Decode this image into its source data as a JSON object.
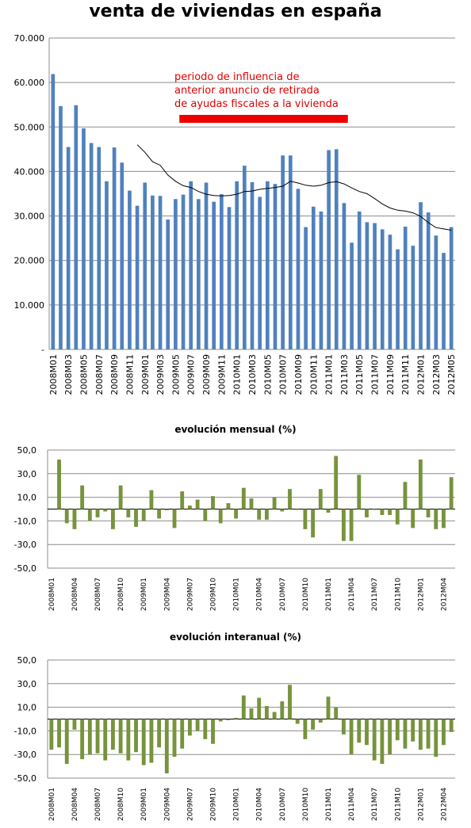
{
  "title": "venta de viviendas en españa",
  "chart_data": [
    {
      "type": "bar",
      "title": "venta de viviendas en españa",
      "bar_color": "#4f81bd",
      "line_color": "#000000",
      "yticks": [
        "-",
        "10.000",
        "20.000",
        "30.000",
        "40.000",
        "50.000",
        "60.000",
        "70.000"
      ],
      "ylim": [
        0,
        70000
      ],
      "grid": true,
      "categories": [
        "2008M01",
        "2008M02",
        "2008M03",
        "2008M04",
        "2008M05",
        "2008M06",
        "2008M07",
        "2008M08",
        "2008M09",
        "2008M10",
        "2008M11",
        "2008M12",
        "2009M01",
        "2009M02",
        "2009M03",
        "2009M04",
        "2009M05",
        "2009M06",
        "2009M07",
        "2009M08",
        "2009M09",
        "2009M10",
        "2009M11",
        "2009M12",
        "2010M01",
        "2010M02",
        "2010M03",
        "2010M04",
        "2010M05",
        "2010M06",
        "2010M07",
        "2010M08",
        "2010M09",
        "2010M10",
        "2010M11",
        "2010M12",
        "2011M01",
        "2011M02",
        "2011M03",
        "2011M04",
        "2011M05",
        "2011M06",
        "2011M07",
        "2011M08",
        "2011M09",
        "2011M10",
        "2011M11",
        "2011M12",
        "2012M01",
        "2012M02",
        "2012M03",
        "2012M04",
        "2012M05"
      ],
      "xtick_labels": [
        "2008M01",
        "2008M03",
        "2008M05",
        "2008M07",
        "2008M09",
        "2008M11",
        "2009M01",
        "2009M03",
        "2009M05",
        "2009M07",
        "2009M09",
        "2009M11",
        "2010M01",
        "2010M03",
        "2010M05",
        "2010M07",
        "2010M09",
        "2010M11",
        "2011M01",
        "2011M03",
        "2011M05",
        "2011M07",
        "2011M09",
        "2011M11",
        "2012M01",
        "2012M03",
        "2012M05"
      ],
      "xtick_step": 2,
      "values": [
        61900,
        54700,
        45500,
        54900,
        49700,
        46400,
        45500,
        37800,
        45400,
        42000,
        35700,
        32300,
        37500,
        34600,
        34500,
        29200,
        33800,
        34800,
        37800,
        33800,
        37500,
        33200,
        34900,
        32000,
        37800,
        41300,
        37600,
        34300,
        37800,
        37200,
        43600,
        43600,
        36100,
        27500,
        32100,
        31000,
        44800,
        45000,
        32900,
        24000,
        31000,
        28600,
        28400,
        27000,
        25800,
        22500,
        27600,
        23300,
        33100,
        30800,
        25600,
        21700,
        27500
      ],
      "series": [
        {
          "name": "",
          "type": "line",
          "values": [
            null,
            null,
            null,
            null,
            null,
            null,
            null,
            null,
            null,
            null,
            null,
            46000,
            44300,
            42200,
            41400,
            39200,
            37800,
            36800,
            36400,
            35500,
            34900,
            34600,
            34500,
            34600,
            34900,
            35500,
            35600,
            36000,
            36200,
            36400,
            36700,
            37800,
            37400,
            36900,
            36700,
            36900,
            37500,
            37700,
            37200,
            36300,
            35500,
            35000,
            33900,
            32700,
            31800,
            31300,
            31100,
            30700,
            29900,
            28500,
            27400,
            27100,
            26800
          ]
        }
      ],
      "annotation": {
        "lines": [
          "periodo de influencia de",
          "anterior anuncio de retirada",
          "de ayudas fiscales a la vivienda"
        ],
        "color": "#ee0000",
        "range": [
          "2009M06",
          "2011M03"
        ]
      }
    },
    {
      "type": "bar",
      "title": "evolución mensual (%)",
      "bar_color": "#77933c",
      "yticks": [
        "-50,0",
        "-30,0",
        "-10,0",
        "10,0",
        "30,0",
        "50,0"
      ],
      "ylim": [
        -50,
        50
      ],
      "grid": true,
      "xtick_labels": [
        "2008M01",
        "2008M04",
        "2008M07",
        "2008M10",
        "2009M01",
        "2009M04",
        "2009M07",
        "2009M10",
        "2010M01",
        "2010M04",
        "2010M07",
        "2010M10",
        "2011M01",
        "2011M04",
        "2011M07",
        "2011M10",
        "2012M01",
        "2012M04"
      ],
      "xtick_step": 3,
      "values": [
        42,
        -12,
        -17,
        20,
        -10,
        -7,
        -2,
        -17,
        20,
        -7,
        -15,
        -10,
        16,
        -8,
        -1,
        -16,
        15,
        3,
        8,
        -10,
        11,
        -12,
        5,
        -8,
        18,
        9,
        -9,
        -9,
        10,
        -2,
        17,
        0,
        -17,
        -24,
        17,
        -3,
        45,
        -27,
        -27,
        29,
        -7,
        0,
        -5,
        -5,
        -13,
        23,
        -16,
        42,
        -7,
        -17,
        -16,
        27
      ],
      "bar_offset": 1
    },
    {
      "type": "bar",
      "title": "evolución interanual (%)",
      "bar_color": "#77933c",
      "yticks": [
        "-50,0",
        "-30,0",
        "-10,0",
        "10,0",
        "30,0",
        "50,0"
      ],
      "ylim": [
        -50,
        50
      ],
      "grid": true,
      "xtick_labels": [
        "2008M01",
        "2008M04",
        "2008M07",
        "2008M10",
        "2009M01",
        "2009M04",
        "2009M07",
        "2009M10",
        "2010M01",
        "2010M04",
        "2010M07",
        "2010M10",
        "2011M01",
        "2011M04",
        "2011M07",
        "2011M10",
        "2012M01",
        "2012M04"
      ],
      "xtick_step": 3,
      "values": [
        -26,
        -24,
        -38,
        -9,
        -34,
        -30,
        -29,
        -35,
        -26,
        -29,
        -35,
        -28,
        -39,
        -37,
        -24,
        -46,
        -32,
        -25,
        -14,
        -10,
        -17,
        -21,
        -2,
        -1,
        1,
        20,
        9,
        18,
        11,
        6,
        15,
        29,
        -4,
        -17,
        -9,
        -3,
        19,
        10,
        -13,
        -30,
        -20,
        -22,
        -35,
        -38,
        -30,
        -18,
        -25,
        -19,
        -26,
        -25,
        -32,
        -22,
        -11
      ],
      "bar_offset": 0
    }
  ]
}
